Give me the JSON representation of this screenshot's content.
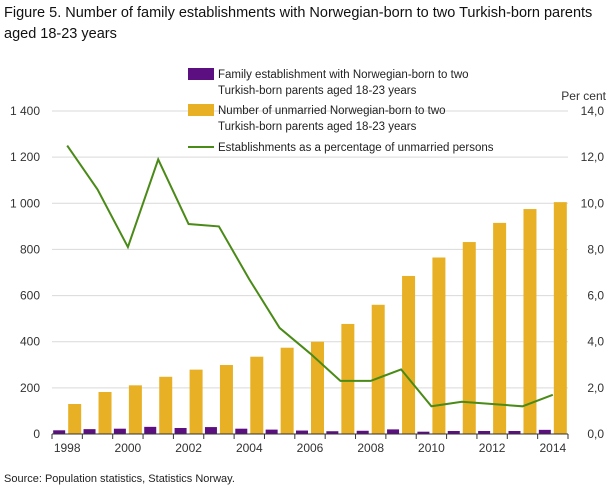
{
  "title": "Figure 5. Number of family establishments with Norwegian-born to two Turkish-born parents aged 18-23 years",
  "source": "Source: Population  statistics, Statistics Norway.",
  "chart_data": {
    "type": "bar",
    "categories": [
      1998,
      1999,
      2000,
      2001,
      2002,
      2003,
      2004,
      2005,
      2006,
      2007,
      2008,
      2009,
      2010,
      2011,
      2012,
      2013,
      2014
    ],
    "x_tick_labels": [
      "1998",
      "2000",
      "2002",
      "2004",
      "2006",
      "2008",
      "2010",
      "2012",
      "2014"
    ],
    "y_left": {
      "range": [
        0,
        1400
      ],
      "ticks": [
        "0",
        "200",
        "400",
        "600",
        "800",
        "1 000",
        "1 200",
        "1 400"
      ],
      "label": ""
    },
    "y_right": {
      "range": [
        0,
        14
      ],
      "ticks": [
        "0,0",
        "2,0",
        "4,0",
        "6,0",
        "8,0",
        "10,0",
        "12,0",
        "14,0"
      ],
      "label": "Per cent"
    },
    "series": [
      {
        "name": "Family establishment with Norwegian-born to two Turkish-born parents aged 18-23 years",
        "type": "bar",
        "axis": "left",
        "color": "#5b0f80",
        "values": [
          16,
          21,
          23,
          31,
          26,
          30,
          23,
          19,
          15,
          12,
          14,
          20,
          10,
          13,
          13,
          13,
          18
        ]
      },
      {
        "name": "Number of unmarried Norwegian-born to two Turkish-born parents aged 18-23 years",
        "type": "bar",
        "axis": "left",
        "color": "#e8b025",
        "values": [
          130,
          182,
          211,
          248,
          279,
          299,
          335,
          374,
          400,
          477,
          560,
          685,
          765,
          832,
          915,
          975,
          1005
        ]
      },
      {
        "name": "Establishments as a percentage of unmarried persons",
        "type": "line",
        "axis": "right",
        "color": "#4a8a17",
        "values": [
          12.5,
          10.6,
          8.1,
          11.9,
          9.1,
          9.0,
          6.7,
          4.6,
          3.5,
          2.3,
          2.3,
          2.8,
          1.2,
          1.4,
          1.3,
          1.2,
          1.7
        ]
      }
    ],
    "legend_position": "top-right",
    "grid": true
  }
}
